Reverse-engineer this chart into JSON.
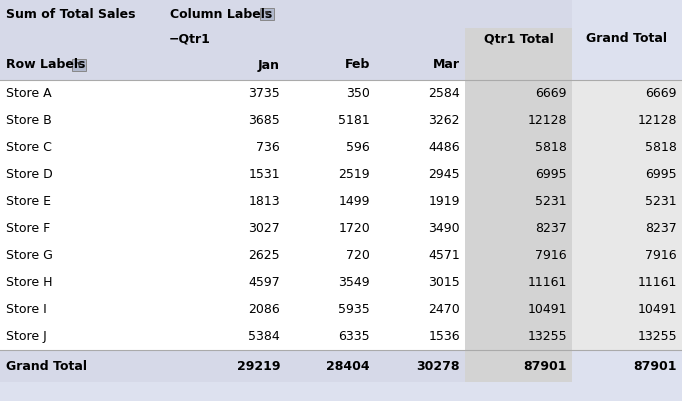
{
  "title_left": "Sum of Total Sales",
  "title_right": "Column Labels",
  "qtr_label": "−Qtr1",
  "row_label_header": "Row Labels",
  "stores": [
    "Store A",
    "Store B",
    "Store C",
    "Store D",
    "Store E",
    "Store F",
    "Store G",
    "Store H",
    "Store I",
    "Store J"
  ],
  "jan": [
    3735,
    3685,
    736,
    1531,
    1813,
    3027,
    2625,
    4597,
    2086,
    5384
  ],
  "feb": [
    350,
    5181,
    596,
    2519,
    1499,
    1720,
    720,
    3549,
    5935,
    6335
  ],
  "mar": [
    2584,
    3262,
    4486,
    2945,
    1919,
    3490,
    4571,
    3015,
    2470,
    1536
  ],
  "qtr1_total": [
    6669,
    12128,
    5818,
    6995,
    5231,
    8237,
    7916,
    11161,
    10491,
    13255
  ],
  "grand_total": [
    6669,
    12128,
    5818,
    6995,
    5231,
    8237,
    7916,
    11161,
    10491,
    13255
  ],
  "grand_total_row": [
    29219,
    28404,
    30278,
    87901,
    87901
  ],
  "header_bg": "#d6d9e8",
  "total_col_bg": "#d3d3d3",
  "grand_total_row_bg": "#d6d9e8",
  "data_row_bg": "#ffffff",
  "grand_total_col_bg": "#e8e8e8",
  "fig_bg": "#dde1ef"
}
